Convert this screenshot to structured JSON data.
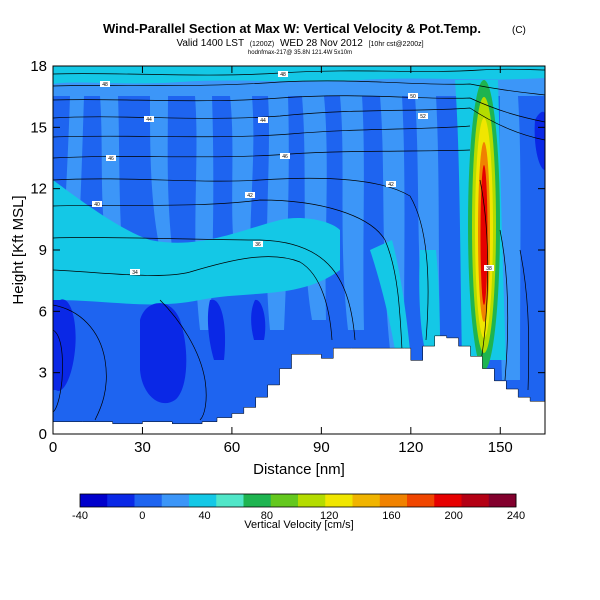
{
  "chart_data": {
    "type": "heatmap",
    "title": "Wind-Parallel Section at Max W: Vertical Velocity & Pot.Temp.",
    "title_mark": "(C)",
    "subtitle_main": "Valid 1400 LST",
    "subtitle_init": "(1200Z)",
    "subtitle_date": "WED 28 Nov 2012",
    "subtitle_run": "[10hr cst@2200z]",
    "subtitle_small": "hodnfmax-217@ 35.8N 121.4W 5x10m",
    "xlabel": "Distance [nm]",
    "ylabel": "Height [Kft MSL]",
    "xlim": [
      0,
      165
    ],
    "ylim": [
      0,
      18
    ],
    "xticks": [
      0,
      30,
      60,
      90,
      120,
      150
    ],
    "yticks": [
      0,
      3,
      6,
      9,
      12,
      15,
      18
    ],
    "colorbar": {
      "label": "Vertical Velocity [cm/s]",
      "ticks": [
        -40,
        0,
        40,
        80,
        120,
        160,
        200,
        240
      ],
      "colors": [
        "#0000cc",
        "#0a28e6",
        "#1e64f0",
        "#3c96f8",
        "#14c8e6",
        "#50e6c8",
        "#1eb450",
        "#64c81e",
        "#b4dc00",
        "#f0e600",
        "#f0b400",
        "#f08200",
        "#f04600",
        "#e60000",
        "#b40014",
        "#82002d"
      ]
    },
    "contour_labels": [
      "48",
      "44",
      "46",
      "52",
      "50",
      "54",
      "56",
      "38",
      "40",
      "42",
      "36",
      "34"
    ],
    "terrain_profile": [
      [
        0,
        0.6
      ],
      [
        10,
        0.6
      ],
      [
        20,
        0.5
      ],
      [
        30,
        0.6
      ],
      [
        40,
        0.5
      ],
      [
        50,
        0.6
      ],
      [
        55,
        0.8
      ],
      [
        60,
        1.0
      ],
      [
        64,
        1.3
      ],
      [
        68,
        1.8
      ],
      [
        72,
        2.4
      ],
      [
        76,
        3.2
      ],
      [
        80,
        3.9
      ],
      [
        86,
        3.9
      ],
      [
        90,
        3.7
      ],
      [
        94,
        4.2
      ],
      [
        100,
        4.2
      ],
      [
        110,
        4.2
      ],
      [
        118,
        4.2
      ],
      [
        120,
        3.6
      ],
      [
        124,
        4.3
      ],
      [
        128,
        4.8
      ],
      [
        132,
        4.7
      ],
      [
        136,
        4.3
      ],
      [
        140,
        3.8
      ],
      [
        144,
        3.2
      ],
      [
        148,
        2.6
      ],
      [
        152,
        2.2
      ],
      [
        156,
        1.8
      ],
      [
        160,
        1.6
      ],
      [
        165,
        1.6
      ]
    ]
  }
}
